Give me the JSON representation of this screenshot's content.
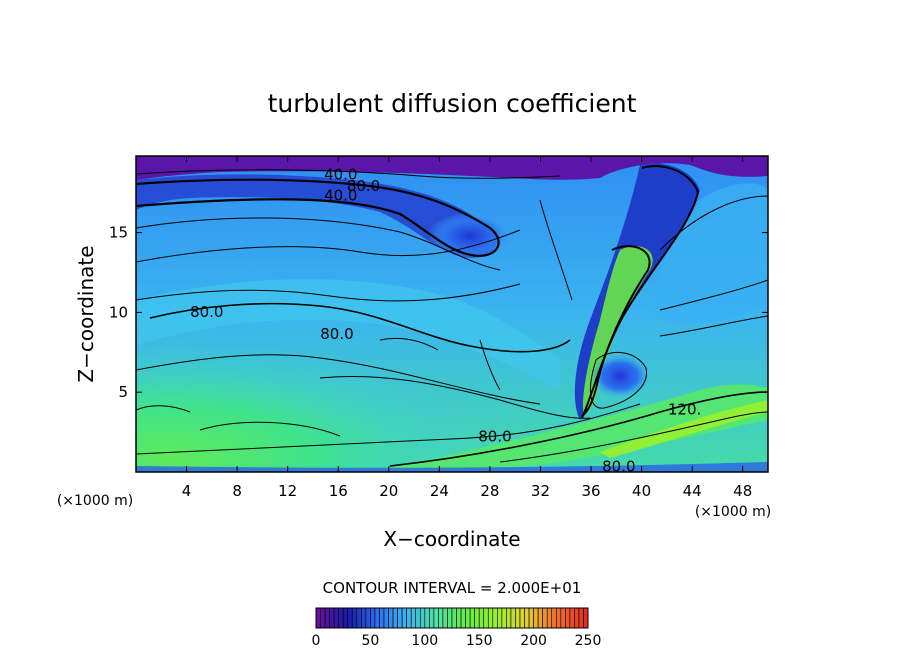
{
  "chart_data": {
    "type": "heatmap",
    "title": "turbulent diffusion coefficient",
    "xlabel": "X−coordinate",
    "ylabel": "Z−coordinate",
    "x_unit": "(×1000 m)",
    "y_unit": "(×1000 m)",
    "xlim": [
      0,
      50
    ],
    "ylim": [
      0,
      19.8
    ],
    "x_ticks": [
      4,
      8,
      12,
      16,
      20,
      24,
      28,
      32,
      36,
      40,
      44,
      48
    ],
    "y_ticks": [
      5,
      10,
      15
    ],
    "contour_interval_label": "CONTOUR INTERVAL = 2.000E+01",
    "contour_interval": 20,
    "contour_labels": [
      {
        "text": "40.0",
        "x": 16.2,
        "y": 18.6
      },
      {
        "text": "80.0",
        "x": 18.0,
        "y": 17.9
      },
      {
        "text": "40.0",
        "x": 16.2,
        "y": 17.3
      },
      {
        "text": "80.0",
        "x": 5.6,
        "y": 10.0
      },
      {
        "text": "80.0",
        "x": 15.9,
        "y": 8.6
      },
      {
        "text": "80.0",
        "x": 28.4,
        "y": 2.2
      },
      {
        "text": "120.",
        "x": 43.4,
        "y": 3.9
      },
      {
        "text": "80.0",
        "x": 38.2,
        "y": 0.3
      }
    ],
    "colorbar": {
      "min": 0,
      "max": 250,
      "ticks": [
        0,
        50,
        100,
        150,
        200,
        250
      ],
      "colors": [
        "#6a0fa0",
        "#1a1aa8",
        "#2e6ff0",
        "#3fb6f0",
        "#4ee0a0",
        "#66ee44",
        "#9af030",
        "#e0d030",
        "#f07030",
        "#e03020"
      ]
    },
    "grid": false
  }
}
